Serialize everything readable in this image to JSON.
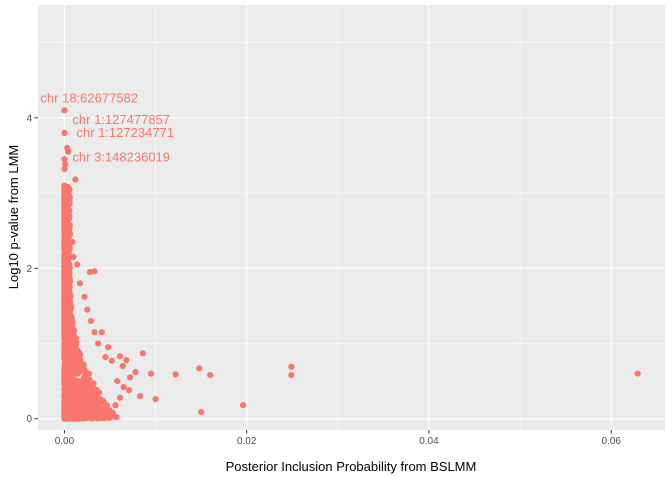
{
  "chart_data": {
    "type": "scatter",
    "title": "",
    "xlabel": "Posterior Inclusion Probability from BSLMM",
    "ylabel": "Log10 p-value from LMM",
    "xlim": [
      -0.0029,
      0.0659
    ],
    "ylim": [
      -0.15,
      5.5
    ],
    "x_ticks": [
      0.0,
      0.02,
      0.04,
      0.06
    ],
    "x_tick_labels": [
      "0.00",
      "0.02",
      "0.04",
      "0.06"
    ],
    "y_ticks": [
      0,
      2,
      4
    ],
    "y_tick_labels": [
      "0",
      "2",
      "4"
    ],
    "grid": true,
    "legend": "none",
    "colors": {
      "points": "#f8766d",
      "panel_bg": "#ebebeb",
      "grid": "#ffffff",
      "tick_text": "#4d4d4d"
    },
    "annotations": [
      {
        "text": "chr 18:62677582",
        "x": 0.0,
        "y": 4.1
      },
      {
        "text": "chr 1:127477857",
        "x": 0.0,
        "y": 3.8
      },
      {
        "text": "chr 1:127234771",
        "x": 0.0,
        "y": 3.6
      },
      {
        "text": "chr 3:148236019",
        "x": 0.0,
        "y": 3.3
      }
    ],
    "points": [
      [
        0.0,
        4.1
      ],
      [
        0.0,
        3.8
      ],
      [
        0.0003,
        3.6
      ],
      [
        0.0004,
        3.55
      ],
      [
        0.0,
        3.45
      ],
      [
        0.0001,
        3.38
      ],
      [
        0.0,
        3.32
      ],
      [
        0.0012,
        3.18
      ],
      [
        0.0,
        3.05
      ],
      [
        0.0002,
        2.95
      ],
      [
        0.0,
        2.85
      ],
      [
        0.0004,
        2.75
      ],
      [
        0.0001,
        2.65
      ],
      [
        0.0003,
        2.55
      ],
      [
        0.0006,
        2.45
      ],
      [
        0.0009,
        2.35
      ],
      [
        0.0002,
        2.25
      ],
      [
        0.001,
        2.15
      ],
      [
        0.0014,
        2.05
      ],
      [
        0.0028,
        1.95
      ],
      [
        0.0033,
        1.96
      ],
      [
        0.0017,
        1.8
      ],
      [
        0.0022,
        1.62
      ],
      [
        0.0025,
        1.45
      ],
      [
        0.0029,
        1.3
      ],
      [
        0.0033,
        1.15
      ],
      [
        0.0041,
        1.15
      ],
      [
        0.0037,
        1.0
      ],
      [
        0.0048,
        0.95
      ],
      [
        0.0045,
        0.82
      ],
      [
        0.0052,
        0.77
      ],
      [
        0.0061,
        0.83
      ],
      [
        0.0068,
        0.78
      ],
      [
        0.0064,
        0.7
      ],
      [
        0.0086,
        0.87
      ],
      [
        0.0078,
        0.62
      ],
      [
        0.0072,
        0.55
      ],
      [
        0.0095,
        0.6
      ],
      [
        0.0058,
        0.5
      ],
      [
        0.0065,
        0.42
      ],
      [
        0.0071,
        0.38
      ],
      [
        0.0083,
        0.3
      ],
      [
        0.01,
        0.26
      ],
      [
        0.0122,
        0.59
      ],
      [
        0.0148,
        0.67
      ],
      [
        0.016,
        0.58
      ],
      [
        0.0249,
        0.69
      ],
      [
        0.0249,
        0.58
      ],
      [
        0.0196,
        0.18
      ],
      [
        0.015,
        0.09
      ],
      [
        0.0629,
        0.6
      ],
      [
        0.0061,
        0.28
      ],
      [
        0.0056,
        0.18
      ],
      [
        0.0048,
        0.12
      ],
      [
        0.0053,
        0.08
      ],
      [
        0.0043,
        0.22
      ],
      [
        0.0038,
        0.35
      ],
      [
        0.0032,
        0.47
      ],
      [
        0.0027,
        0.6
      ],
      [
        0.0021,
        0.72
      ],
      [
        0.0016,
        0.88
      ],
      [
        0.0011,
        1.05
      ],
      [
        0.0008,
        1.25
      ],
      [
        0.0006,
        1.55
      ],
      [
        0.0004,
        1.85
      ]
    ],
    "dense_cluster": {
      "x_range": [
        0.0,
        0.006
      ],
      "y_range": [
        0.0,
        3.1
      ],
      "description_values_only": [
        [
          0.0,
          0.0
        ],
        [
          0.0,
          3.1
        ]
      ]
    }
  }
}
